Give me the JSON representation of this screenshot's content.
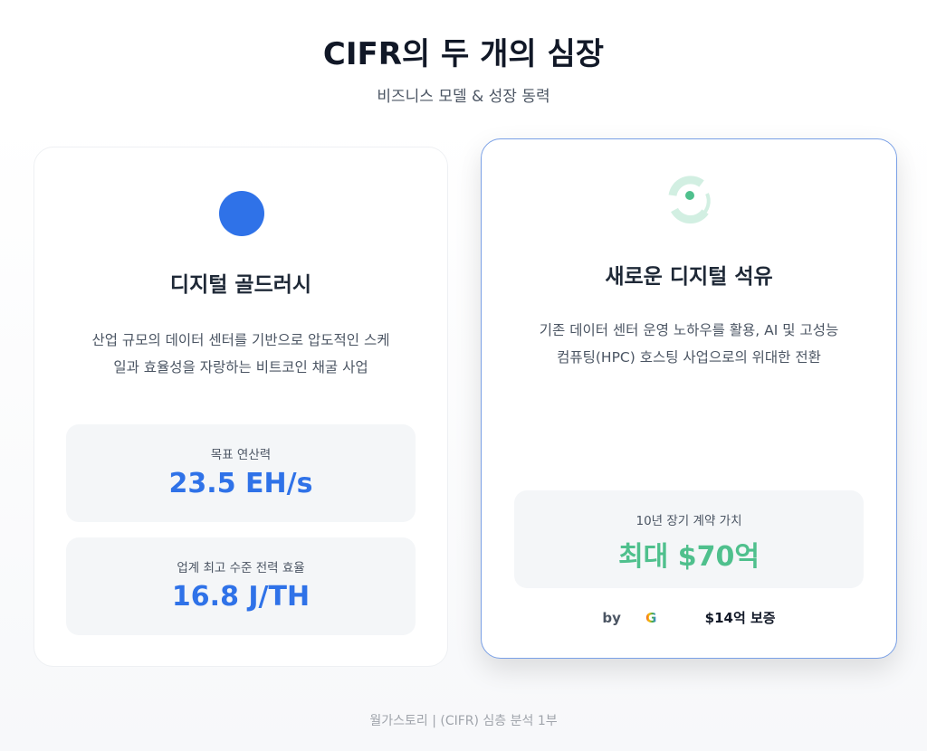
{
  "header": {
    "title": "CIFR의 두 개의 심장",
    "subtitle": "비즈니스 모델 & 성장 동력"
  },
  "cards": [
    {
      "icon": "blue-circle-icon",
      "title": "디지털 골드러시",
      "desc_lines": [
        "산업 규모의 데이터 센터를 기반으로 압도적인 스케",
        "일과 효율성을 자랑하는 비트코인 채굴 사업"
      ],
      "stats": [
        {
          "label": "목표 연산력",
          "value": "23.5 EH/s"
        },
        {
          "label": "업계 최고 수준 전력 효율",
          "value": "16.8 J/TH"
        }
      ]
    },
    {
      "icon": "green-cycle-icon",
      "title": "새로운 디지털 석유",
      "desc_lines": [
        "기존 데이터 센터 운영 노하우를 활용, AI 및 고성능",
        "컴퓨팅(HPC) 호스팅 사업으로의 위대한 전환"
      ],
      "stats": [
        {
          "label": "10년 장기 계약 가치",
          "value": "최대 $70억"
        }
      ],
      "by": "by",
      "guarantee": "$14억 보증"
    }
  ],
  "colors": {
    "blue": "#2f72e8",
    "green": "#4fc08d"
  },
  "footer": "월가스토리 | (CIFR) 심층 분석 1부"
}
